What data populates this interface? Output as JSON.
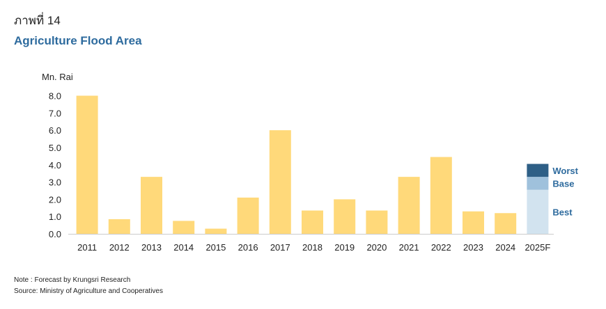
{
  "header": {
    "figure_label": "ภาพที่ 14",
    "title": "Agriculture Flood Area"
  },
  "chart_data": {
    "type": "bar",
    "ylabel": "Mn. Rai",
    "ylim": [
      0,
      8
    ],
    "yticks": [
      "0.0",
      "1.0",
      "2.0",
      "3.0",
      "4.0",
      "5.0",
      "6.0",
      "7.0",
      "8.0"
    ],
    "categories": [
      "2011",
      "2012",
      "2013",
      "2014",
      "2015",
      "2016",
      "2017",
      "2018",
      "2019",
      "2020",
      "2021",
      "2022",
      "2023",
      "2024",
      "2025F"
    ],
    "values": [
      8.0,
      0.85,
      3.3,
      0.75,
      0.3,
      2.1,
      6.0,
      1.35,
      2.0,
      1.35,
      3.3,
      4.45,
      1.3,
      1.2,
      null
    ],
    "bar_color": "#FFD97A",
    "forecast": {
      "category": "2025F",
      "scenarios": [
        {
          "name": "Best",
          "value": 2.55,
          "color": "#D2E3EF"
        },
        {
          "name": "Base",
          "value": 3.3,
          "color": "#9FC1DC"
        },
        {
          "name": "Worst",
          "value": 4.05,
          "color": "#2E5F86"
        }
      ],
      "label_color": "#2E6B9E"
    },
    "grid": false,
    "legend": "none"
  },
  "notes": {
    "note": "Note : Forecast by Krungsri Research",
    "source": "Source: Ministry of Agriculture and Cooperatives"
  }
}
